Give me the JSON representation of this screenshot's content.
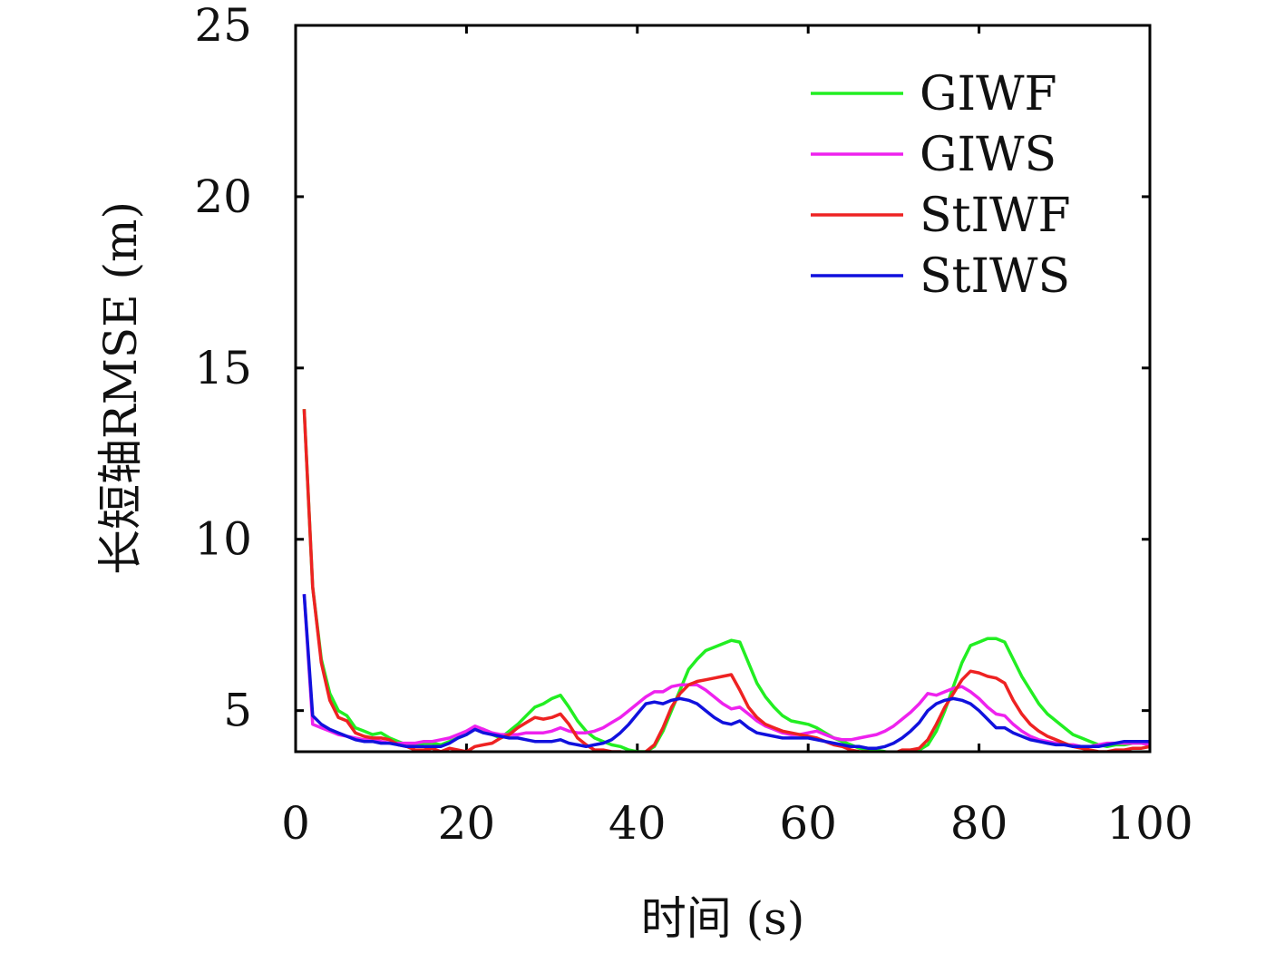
{
  "chart_data": {
    "type": "line",
    "xlabel": "时间 (s)",
    "ylabel": "长短轴RMSE (m)",
    "xlim": [
      0,
      100
    ],
    "ylim": [
      3.8,
      25
    ],
    "xticks": [
      0,
      20,
      40,
      60,
      80,
      100
    ],
    "yticks": [
      5,
      10,
      15,
      20,
      25
    ],
    "grid": false,
    "legend_position": "top-right",
    "x": [
      1,
      2,
      3,
      4,
      5,
      6,
      7,
      8,
      9,
      10,
      11,
      12,
      13,
      14,
      15,
      16,
      17,
      18,
      19,
      20,
      21,
      22,
      23,
      24,
      25,
      26,
      27,
      28,
      29,
      30,
      31,
      32,
      33,
      34,
      35,
      36,
      37,
      38,
      39,
      40,
      41,
      42,
      43,
      44,
      45,
      46,
      47,
      48,
      49,
      50,
      51,
      52,
      53,
      54,
      55,
      56,
      57,
      58,
      59,
      60,
      61,
      62,
      63,
      64,
      65,
      66,
      67,
      68,
      69,
      70,
      71,
      72,
      73,
      74,
      75,
      76,
      77,
      78,
      79,
      80,
      81,
      82,
      83,
      84,
      85,
      86,
      87,
      88,
      89,
      90,
      91,
      92,
      93,
      94,
      95,
      96,
      97,
      98,
      99,
      100
    ],
    "series": [
      {
        "name": "GIWF",
        "color": "#22ee22",
        "values": [
          13.8,
          8.6,
          6.5,
          5.5,
          5.0,
          4.85,
          4.5,
          4.4,
          4.3,
          4.35,
          4.2,
          4.1,
          4.0,
          4.0,
          4.05,
          4.05,
          4.0,
          4.1,
          4.2,
          4.3,
          4.5,
          4.45,
          4.3,
          4.2,
          4.4,
          4.6,
          4.85,
          5.1,
          5.2,
          5.35,
          5.45,
          5.1,
          4.7,
          4.4,
          4.2,
          4.1,
          4.0,
          3.95,
          3.85,
          3.8,
          3.8,
          3.95,
          4.4,
          5.0,
          5.6,
          6.2,
          6.5,
          6.75,
          6.85,
          6.95,
          7.05,
          7.0,
          6.4,
          5.8,
          5.4,
          5.1,
          4.85,
          4.7,
          4.65,
          4.6,
          4.5,
          4.35,
          4.2,
          4.1,
          4.0,
          3.9,
          3.85,
          3.85,
          3.8,
          3.75,
          3.8,
          3.85,
          3.85,
          4.0,
          4.4,
          5.0,
          5.7,
          6.4,
          6.9,
          7.0,
          7.1,
          7.1,
          7.0,
          6.5,
          6.0,
          5.6,
          5.2,
          4.9,
          4.7,
          4.5,
          4.3,
          4.2,
          4.1,
          4.0,
          3.95,
          4.0,
          4.0,
          4.05,
          4.05,
          4.0
        ]
      },
      {
        "name": "GIWS",
        "color": "#ee22ee",
        "values": [
          8.4,
          4.6,
          4.5,
          4.4,
          4.3,
          4.25,
          4.2,
          4.15,
          4.15,
          4.1,
          4.05,
          4.05,
          4.05,
          4.05,
          4.1,
          4.1,
          4.15,
          4.2,
          4.3,
          4.4,
          4.55,
          4.45,
          4.35,
          4.3,
          4.3,
          4.3,
          4.35,
          4.35,
          4.35,
          4.4,
          4.5,
          4.4,
          4.35,
          4.35,
          4.4,
          4.5,
          4.65,
          4.8,
          5.0,
          5.2,
          5.4,
          5.55,
          5.55,
          5.7,
          5.75,
          5.75,
          5.75,
          5.6,
          5.4,
          5.2,
          5.05,
          5.1,
          4.9,
          4.7,
          4.55,
          4.45,
          4.35,
          4.3,
          4.3,
          4.35,
          4.4,
          4.3,
          4.2,
          4.15,
          4.15,
          4.2,
          4.25,
          4.3,
          4.4,
          4.55,
          4.75,
          4.95,
          5.2,
          5.5,
          5.45,
          5.55,
          5.65,
          5.7,
          5.55,
          5.35,
          5.1,
          4.9,
          4.85,
          4.6,
          4.4,
          4.25,
          4.15,
          4.1,
          4.05,
          4.0,
          4.0,
          3.95,
          3.95,
          4.0,
          4.05,
          4.05,
          4.05,
          4.05,
          4.05,
          4.0
        ]
      },
      {
        "name": "StIWF",
        "color": "#ee2222",
        "values": [
          13.8,
          8.6,
          6.4,
          5.3,
          4.8,
          4.7,
          4.35,
          4.25,
          4.2,
          4.2,
          4.15,
          4.0,
          3.95,
          3.85,
          3.85,
          3.9,
          3.8,
          3.9,
          3.85,
          3.8,
          3.95,
          4.0,
          4.05,
          4.2,
          4.3,
          4.5,
          4.65,
          4.8,
          4.75,
          4.8,
          4.9,
          4.6,
          4.2,
          4.0,
          3.85,
          3.85,
          3.8,
          3.8,
          3.75,
          3.75,
          3.8,
          4.0,
          4.5,
          5.1,
          5.5,
          5.75,
          5.85,
          5.9,
          5.95,
          6.0,
          6.05,
          5.6,
          5.1,
          4.8,
          4.6,
          4.5,
          4.4,
          4.35,
          4.3,
          4.25,
          4.2,
          4.1,
          4.0,
          3.95,
          3.85,
          3.8,
          3.8,
          3.75,
          3.7,
          3.75,
          3.85,
          3.85,
          3.9,
          4.15,
          4.6,
          5.1,
          5.5,
          5.9,
          6.15,
          6.1,
          6.0,
          5.95,
          5.8,
          5.3,
          4.9,
          4.6,
          4.4,
          4.25,
          4.15,
          4.05,
          3.95,
          3.9,
          3.85,
          3.8,
          3.8,
          3.85,
          3.85,
          3.9,
          3.9,
          3.95
        ]
      },
      {
        "name": "StIWS",
        "color": "#1111dd",
        "values": [
          8.4,
          4.85,
          4.6,
          4.45,
          4.35,
          4.25,
          4.15,
          4.1,
          4.1,
          4.05,
          4.05,
          4.0,
          3.95,
          3.95,
          3.95,
          3.95,
          3.95,
          4.05,
          4.2,
          4.3,
          4.45,
          4.35,
          4.3,
          4.25,
          4.2,
          4.2,
          4.15,
          4.1,
          4.1,
          4.1,
          4.15,
          4.05,
          4.0,
          3.95,
          4.0,
          4.05,
          4.15,
          4.35,
          4.6,
          4.9,
          5.2,
          5.25,
          5.2,
          5.3,
          5.35,
          5.3,
          5.2,
          5.0,
          4.8,
          4.65,
          4.6,
          4.7,
          4.5,
          4.35,
          4.3,
          4.25,
          4.2,
          4.2,
          4.2,
          4.2,
          4.15,
          4.1,
          4.05,
          4.0,
          3.95,
          3.95,
          3.9,
          3.9,
          3.95,
          4.05,
          4.2,
          4.4,
          4.65,
          5.0,
          5.2,
          5.3,
          5.35,
          5.3,
          5.2,
          5.0,
          4.75,
          4.5,
          4.5,
          4.35,
          4.25,
          4.15,
          4.1,
          4.05,
          4.0,
          4.0,
          3.95,
          3.95,
          3.95,
          3.95,
          4.0,
          4.05,
          4.1,
          4.1,
          4.1,
          4.1
        ]
      }
    ]
  }
}
